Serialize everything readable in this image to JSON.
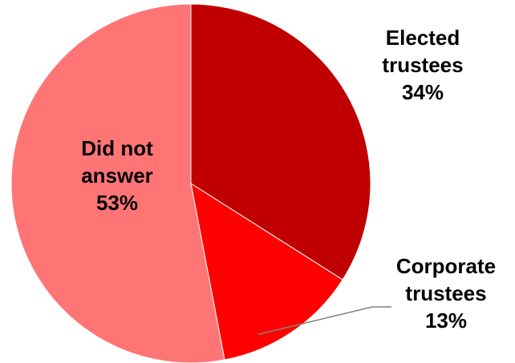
{
  "chart_data": {
    "type": "pie",
    "slices": [
      {
        "label": "Elected trustees",
        "value": 34,
        "value_label": "34%",
        "color": "#C00000",
        "label_lines": [
          "Elected",
          "trustees",
          "34%"
        ]
      },
      {
        "label": "Corporate trustees",
        "value": 13,
        "value_label": "13%",
        "color": "#FF0000",
        "label_lines": [
          "Corporate",
          "trustees",
          "13%"
        ]
      },
      {
        "label": "Did not answer",
        "value": 53,
        "value_label": "53%",
        "color": "#FF7575",
        "label_lines": [
          "Did not",
          "answer",
          "53%"
        ]
      }
    ],
    "start_angle_deg": 0,
    "direction": "clockwise",
    "legend": "none"
  }
}
